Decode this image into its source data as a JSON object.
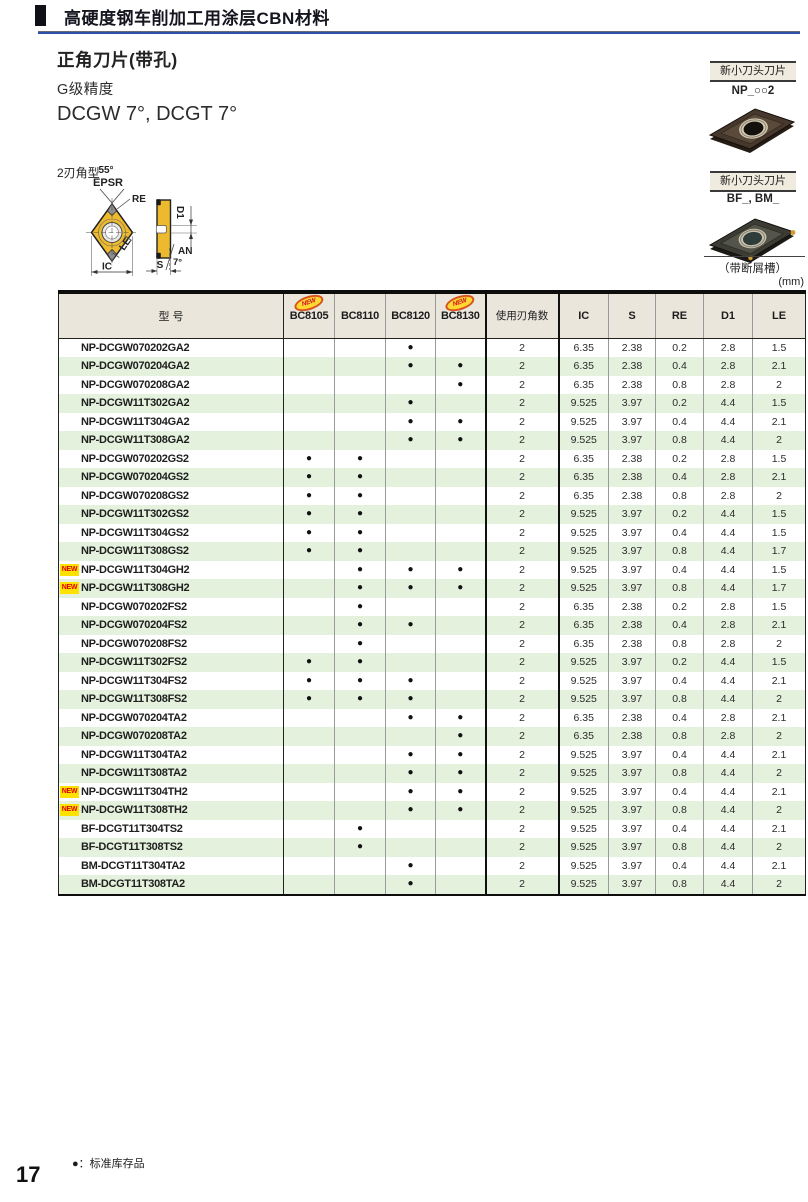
{
  "page": {
    "heading": "高硬度钢车削加工用涂层CBN材料",
    "unit": "(mm)",
    "footnote": "●：标准库存品",
    "page_number": "17"
  },
  "title": {
    "line1": "正角刀片(带孔)",
    "line2": "G级精度",
    "line3": "DCGW 7°, DCGT 7°"
  },
  "right_panel": {
    "badge1_label": "新小刀头刀片",
    "badge1_sub": "NP_○○2",
    "badge2_label": "新小刀头刀片",
    "badge2_sub": "BF_, BM_",
    "chipbreaker_note": "（带断屑槽）"
  },
  "diagram": {
    "type_label": "2刃角型",
    "corner_angle": "55°",
    "epsr": "EPSR",
    "re": "RE",
    "le": "LE",
    "ic": "IC",
    "d1": "D1",
    "an": "AN",
    "an_angle": "7°",
    "s": "S"
  },
  "table": {
    "model_header": "型  号",
    "grade_columns": [
      {
        "label": "BC8105",
        "new": true
      },
      {
        "label": "BC8110",
        "new": false
      },
      {
        "label": "BC8120",
        "new": false
      },
      {
        "label": "BC8130",
        "new": true
      }
    ],
    "edge_header": "使用刃角数",
    "dim_headers": [
      "IC",
      "S",
      "RE",
      "D1",
      "LE"
    ],
    "new_badge": "NEW",
    "dot": "●",
    "rows": [
      {
        "model": "NP-DCGW070202GA2",
        "new": false,
        "dots": [
          0,
          0,
          1,
          0
        ],
        "edges": "2",
        "dims": [
          "6.35",
          "2.38",
          "0.2",
          "2.8",
          "1.5"
        ]
      },
      {
        "model": "NP-DCGW070204GA2",
        "new": false,
        "dots": [
          0,
          0,
          1,
          1
        ],
        "edges": "2",
        "dims": [
          "6.35",
          "2.38",
          "0.4",
          "2.8",
          "2.1"
        ]
      },
      {
        "model": "NP-DCGW070208GA2",
        "new": false,
        "dots": [
          0,
          0,
          0,
          1
        ],
        "edges": "2",
        "dims": [
          "6.35",
          "2.38",
          "0.8",
          "2.8",
          "2"
        ]
      },
      {
        "model": "NP-DCGW11T302GA2",
        "new": false,
        "dots": [
          0,
          0,
          1,
          0
        ],
        "edges": "2",
        "dims": [
          "9.525",
          "3.97",
          "0.2",
          "4.4",
          "1.5"
        ]
      },
      {
        "model": "NP-DCGW11T304GA2",
        "new": false,
        "dots": [
          0,
          0,
          1,
          1
        ],
        "edges": "2",
        "dims": [
          "9.525",
          "3.97",
          "0.4",
          "4.4",
          "2.1"
        ]
      },
      {
        "model": "NP-DCGW11T308GA2",
        "new": false,
        "dots": [
          0,
          0,
          1,
          1
        ],
        "edges": "2",
        "dims": [
          "9.525",
          "3.97",
          "0.8",
          "4.4",
          "2"
        ]
      },
      {
        "model": "NP-DCGW070202GS2",
        "new": false,
        "dots": [
          1,
          1,
          0,
          0
        ],
        "edges": "2",
        "dims": [
          "6.35",
          "2.38",
          "0.2",
          "2.8",
          "1.5"
        ]
      },
      {
        "model": "NP-DCGW070204GS2",
        "new": false,
        "dots": [
          1,
          1,
          0,
          0
        ],
        "edges": "2",
        "dims": [
          "6.35",
          "2.38",
          "0.4",
          "2.8",
          "2.1"
        ]
      },
      {
        "model": "NP-DCGW070208GS2",
        "new": false,
        "dots": [
          1,
          1,
          0,
          0
        ],
        "edges": "2",
        "dims": [
          "6.35",
          "2.38",
          "0.8",
          "2.8",
          "2"
        ]
      },
      {
        "model": "NP-DCGW11T302GS2",
        "new": false,
        "dots": [
          1,
          1,
          0,
          0
        ],
        "edges": "2",
        "dims": [
          "9.525",
          "3.97",
          "0.2",
          "4.4",
          "1.5"
        ]
      },
      {
        "model": "NP-DCGW11T304GS2",
        "new": false,
        "dots": [
          1,
          1,
          0,
          0
        ],
        "edges": "2",
        "dims": [
          "9.525",
          "3.97",
          "0.4",
          "4.4",
          "1.5"
        ]
      },
      {
        "model": "NP-DCGW11T308GS2",
        "new": false,
        "dots": [
          1,
          1,
          0,
          0
        ],
        "edges": "2",
        "dims": [
          "9.525",
          "3.97",
          "0.8",
          "4.4",
          "1.7"
        ]
      },
      {
        "model": "NP-DCGW11T304GH2",
        "new": true,
        "dots": [
          0,
          1,
          1,
          1
        ],
        "edges": "2",
        "dims": [
          "9.525",
          "3.97",
          "0.4",
          "4.4",
          "1.5"
        ]
      },
      {
        "model": "NP-DCGW11T308GH2",
        "new": true,
        "dots": [
          0,
          1,
          1,
          1
        ],
        "edges": "2",
        "dims": [
          "9.525",
          "3.97",
          "0.8",
          "4.4",
          "1.7"
        ]
      },
      {
        "model": "NP-DCGW070202FS2",
        "new": false,
        "dots": [
          0,
          1,
          0,
          0
        ],
        "edges": "2",
        "dims": [
          "6.35",
          "2.38",
          "0.2",
          "2.8",
          "1.5"
        ]
      },
      {
        "model": "NP-DCGW070204FS2",
        "new": false,
        "dots": [
          0,
          1,
          1,
          0
        ],
        "edges": "2",
        "dims": [
          "6.35",
          "2.38",
          "0.4",
          "2.8",
          "2.1"
        ]
      },
      {
        "model": "NP-DCGW070208FS2",
        "new": false,
        "dots": [
          0,
          1,
          0,
          0
        ],
        "edges": "2",
        "dims": [
          "6.35",
          "2.38",
          "0.8",
          "2.8",
          "2"
        ]
      },
      {
        "model": "NP-DCGW11T302FS2",
        "new": false,
        "dots": [
          1,
          1,
          0,
          0
        ],
        "edges": "2",
        "dims": [
          "9.525",
          "3.97",
          "0.2",
          "4.4",
          "1.5"
        ]
      },
      {
        "model": "NP-DCGW11T304FS2",
        "new": false,
        "dots": [
          1,
          1,
          1,
          0
        ],
        "edges": "2",
        "dims": [
          "9.525",
          "3.97",
          "0.4",
          "4.4",
          "2.1"
        ]
      },
      {
        "model": "NP-DCGW11T308FS2",
        "new": false,
        "dots": [
          1,
          1,
          1,
          0
        ],
        "edges": "2",
        "dims": [
          "9.525",
          "3.97",
          "0.8",
          "4.4",
          "2"
        ]
      },
      {
        "model": "NP-DCGW070204TA2",
        "new": false,
        "dots": [
          0,
          0,
          1,
          1
        ],
        "edges": "2",
        "dims": [
          "6.35",
          "2.38",
          "0.4",
          "2.8",
          "2.1"
        ]
      },
      {
        "model": "NP-DCGW070208TA2",
        "new": false,
        "dots": [
          0,
          0,
          0,
          1
        ],
        "edges": "2",
        "dims": [
          "6.35",
          "2.38",
          "0.8",
          "2.8",
          "2"
        ]
      },
      {
        "model": "NP-DCGW11T304TA2",
        "new": false,
        "dots": [
          0,
          0,
          1,
          1
        ],
        "edges": "2",
        "dims": [
          "9.525",
          "3.97",
          "0.4",
          "4.4",
          "2.1"
        ]
      },
      {
        "model": "NP-DCGW11T308TA2",
        "new": false,
        "dots": [
          0,
          0,
          1,
          1
        ],
        "edges": "2",
        "dims": [
          "9.525",
          "3.97",
          "0.8",
          "4.4",
          "2"
        ]
      },
      {
        "model": "NP-DCGW11T304TH2",
        "new": true,
        "dots": [
          0,
          0,
          1,
          1
        ],
        "edges": "2",
        "dims": [
          "9.525",
          "3.97",
          "0.4",
          "4.4",
          "2.1"
        ]
      },
      {
        "model": "NP-DCGW11T308TH2",
        "new": true,
        "dots": [
          0,
          0,
          1,
          1
        ],
        "edges": "2",
        "dims": [
          "9.525",
          "3.97",
          "0.8",
          "4.4",
          "2"
        ]
      },
      {
        "model": "BF-DCGT11T304TS2",
        "new": false,
        "dots": [
          0,
          1,
          0,
          0
        ],
        "edges": "2",
        "dims": [
          "9.525",
          "3.97",
          "0.4",
          "4.4",
          "2.1"
        ]
      },
      {
        "model": "BF-DCGT11T308TS2",
        "new": false,
        "dots": [
          0,
          1,
          0,
          0
        ],
        "edges": "2",
        "dims": [
          "9.525",
          "3.97",
          "0.8",
          "4.4",
          "2"
        ]
      },
      {
        "model": "BM-DCGT11T304TA2",
        "new": false,
        "dots": [
          0,
          0,
          1,
          0
        ],
        "edges": "2",
        "dims": [
          "9.525",
          "3.97",
          "0.4",
          "4.4",
          "2.1"
        ]
      },
      {
        "model": "BM-DCGT11T308TA2",
        "new": false,
        "dots": [
          0,
          0,
          1,
          0
        ],
        "edges": "2",
        "dims": [
          "9.525",
          "3.97",
          "0.8",
          "4.4",
          "2"
        ]
      }
    ]
  }
}
